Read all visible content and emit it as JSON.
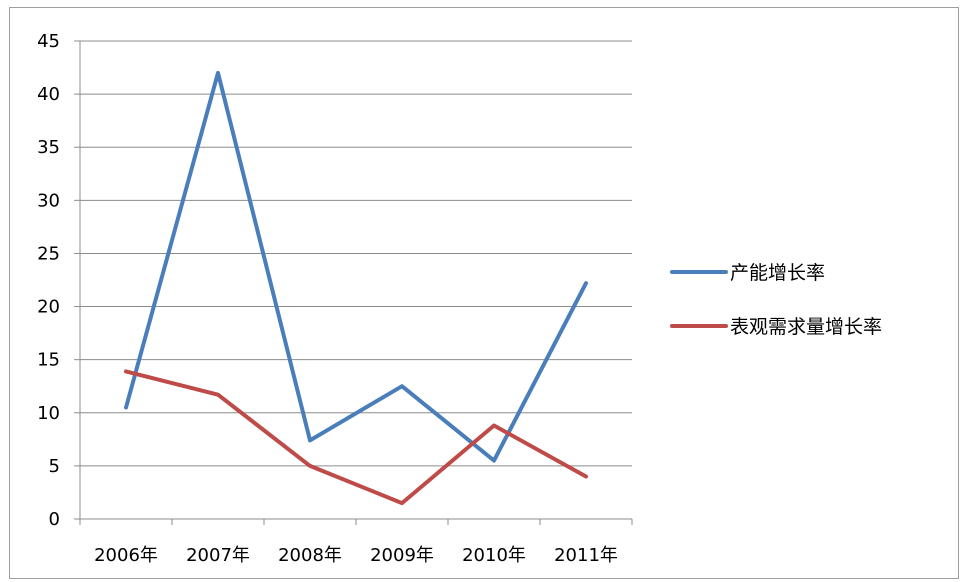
{
  "chart_data": {
    "type": "line",
    "title": "",
    "xlabel": "",
    "ylabel": "",
    "categories": [
      "2006年",
      "2007年",
      "2008年",
      "2009年",
      "2010年",
      "2011年"
    ],
    "ylim": [
      0,
      45
    ],
    "yticks": [
      0,
      5,
      10,
      15,
      20,
      25,
      30,
      35,
      40,
      45
    ],
    "grid": true,
    "legend_position": "right",
    "series": [
      {
        "name": "产能增长率",
        "color": "#4a7ebb",
        "values": [
          10.5,
          42,
          7.4,
          12.5,
          5.5,
          22.2
        ]
      },
      {
        "name": "表观需求量增长率",
        "color": "#be4b48",
        "values": [
          13.9,
          11.7,
          5.0,
          1.5,
          8.8,
          4.0
        ]
      }
    ]
  }
}
